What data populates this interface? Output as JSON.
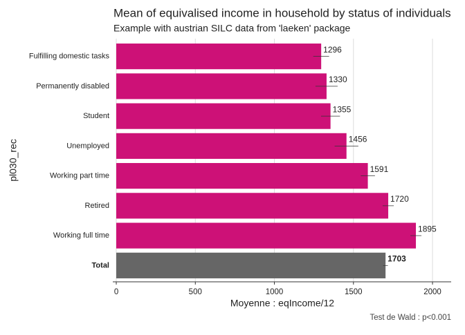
{
  "chart_data": {
    "type": "hbar",
    "title": "Mean of equivalised income in household by status of individuals",
    "subtitle": "Example with austrian SILC data from 'laeken' package",
    "y_label": "pl030_rec",
    "x_label": "Moyenne : eqIncome/12",
    "caption": "Test de Wald : p<0.001",
    "categories": [
      "Fulfilling domestic tasks",
      "Permanently disabled",
      "Student",
      "Unemployed",
      "Working part time",
      "Retired",
      "Working full time",
      "Total"
    ],
    "values": [
      1296,
      1330,
      1355,
      1456,
      1591,
      1720,
      1895,
      1703
    ],
    "errors": [
      50,
      70,
      60,
      75,
      45,
      35,
      35,
      15
    ],
    "colors": [
      "#cd1177",
      "#cd1177",
      "#cd1177",
      "#cd1177",
      "#cd1177",
      "#cd1177",
      "#cd1177",
      "#666666"
    ],
    "xlim": [
      -22,
      2118
    ],
    "xticks": [
      0,
      500,
      1000,
      1500,
      2000
    ],
    "grid": true
  }
}
